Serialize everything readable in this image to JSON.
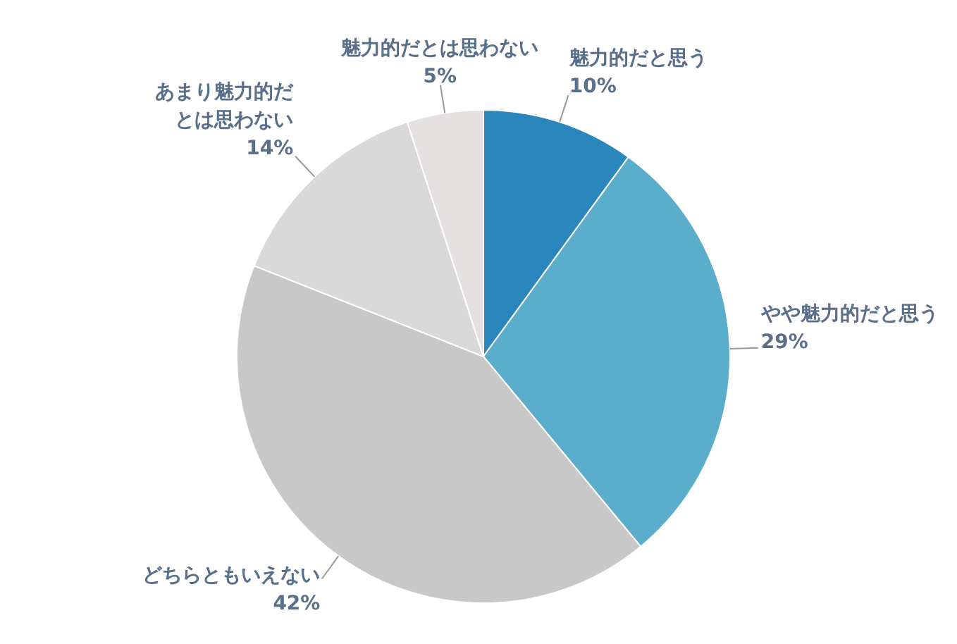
{
  "chart_data": {
    "type": "pie",
    "categories": [
      "魅力的だと思う",
      "やや魅力的だと思う",
      "どちらともいえない",
      "あまり魅力的だとは思わない",
      "魅力的だとは思わない"
    ],
    "values": [
      10,
      29,
      42,
      14,
      5
    ],
    "colors": [
      "#2a86bb",
      "#5aaecc",
      "#c8c8c8",
      "#d9d9d9",
      "#e6e1e1"
    ],
    "value_labels": [
      "10%",
      "29%",
      "42%",
      "14%",
      "5%"
    ]
  }
}
